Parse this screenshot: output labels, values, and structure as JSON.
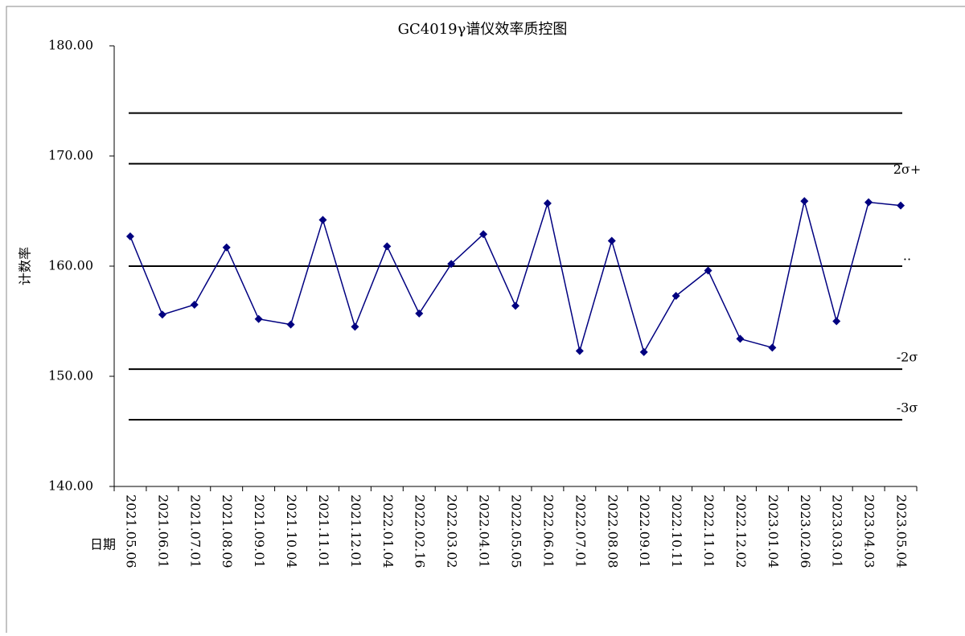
{
  "chart_data": {
    "type": "line",
    "title": "GC4019γ谱仪效率质控图",
    "x_label": "日期",
    "y_label": "计数率",
    "categories": [
      "2021.05.06",
      "2021.06.01",
      "2021.07.01",
      "2021.08.09",
      "2021.09.01",
      "2021.10.04",
      "2021.11.01",
      "2021.12.01",
      "2022.01.04",
      "2022.02.16",
      "2022.03.02",
      "2022.04.01",
      "2022.05.05",
      "2022.06.01",
      "2022.07.01",
      "2022.08.08",
      "2022.09.01",
      "2022.10.11",
      "2022.11.01",
      "2022.12.02",
      "2023.01.04",
      "2023.02.06",
      "2023.03.01",
      "2023.04.03",
      "2023.05.04"
    ],
    "series": [
      {
        "color": "#000080",
        "values": [
          162.7,
          155.6,
          156.5,
          161.7,
          155.2,
          154.7,
          164.2,
          154.5,
          161.8,
          155.7,
          160.2,
          162.9,
          156.4,
          165.7,
          152.3,
          162.3,
          152.2,
          157.3,
          159.6,
          153.4,
          152.6,
          165.9,
          155.0,
          165.8,
          165.5
        ]
      }
    ],
    "reference_lines": [
      {
        "value": 173.9
      },
      {
        "value": 169.3,
        "label": "2σ+"
      },
      {
        "value": 160.0,
        "label": ".."
      },
      {
        "value": 150.65,
        "label": "-2σ"
      },
      {
        "value": 146.06,
        "label": "-3σ"
      }
    ],
    "ylim": [
      140,
      180
    ],
    "yticks": [
      {
        "value": 140,
        "label": "140.00"
      },
      {
        "value": 150,
        "label": "150.00"
      },
      {
        "value": 160,
        "label": "160.00"
      },
      {
        "value": 170,
        "label": "170.00"
      },
      {
        "value": 180,
        "label": "180.00"
      }
    ]
  }
}
